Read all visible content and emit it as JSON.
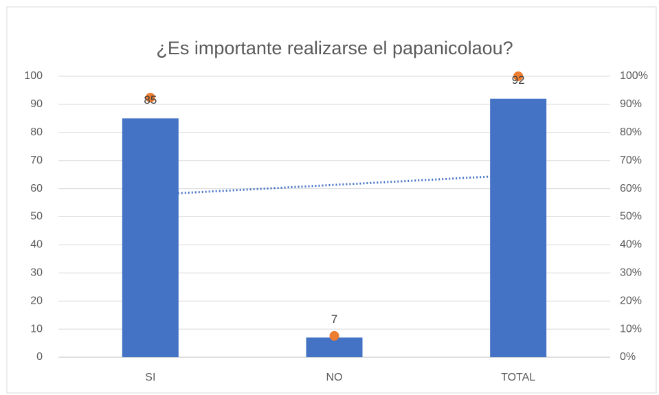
{
  "chart_data": {
    "type": "bar",
    "title": "¿Es importante realizarse el papanicolaou?",
    "categories": [
      "SI",
      "NO",
      "TOTAL"
    ],
    "series": [
      {
        "type": "bar",
        "color": "#4472c4",
        "values": [
          85,
          7,
          92
        ],
        "trendline": true,
        "trendline_color": "#4472c4"
      },
      {
        "type": "scatter",
        "color": "#ed7d31",
        "axis": "y2",
        "values": [
          92.4,
          7.6,
          100
        ]
      }
    ],
    "ylim": [
      0,
      100
    ],
    "yticks": [
      0,
      10,
      20,
      30,
      40,
      50,
      60,
      70,
      80,
      90,
      100
    ],
    "y2lim": [
      0,
      100
    ],
    "y2ticks": [
      {
        "value": 0,
        "label": "0%"
      },
      {
        "value": 10,
        "label": "10%"
      },
      {
        "value": 20,
        "label": "20%"
      },
      {
        "value": 30,
        "label": "30%"
      },
      {
        "value": 40,
        "label": "40%"
      },
      {
        "value": 50,
        "label": "50%"
      },
      {
        "value": 60,
        "label": "60%"
      },
      {
        "value": 70,
        "label": "70%"
      },
      {
        "value": 80,
        "label": "80%"
      },
      {
        "value": 90,
        "label": "90%"
      },
      {
        "value": 100,
        "label": "100%"
      }
    ],
    "grid": true
  }
}
